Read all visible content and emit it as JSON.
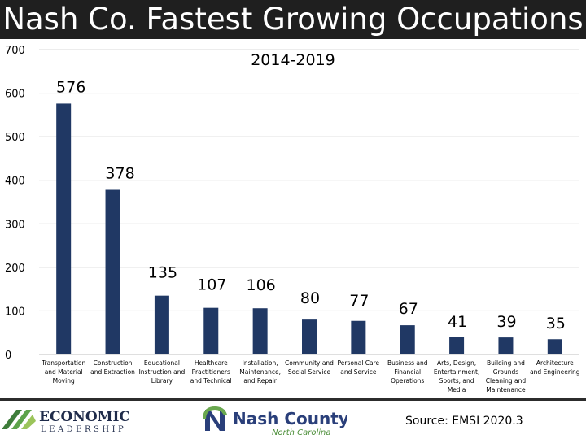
{
  "title": "Nash Co. Fastest Growing Occupations",
  "source": "Source: EMSI 2020.3",
  "logos": {
    "economic": {
      "word1": "ECONOMIC",
      "word2": "LEADERSHIP"
    },
    "nash": {
      "name": "Nash County",
      "state": "North Carolina"
    }
  },
  "colors": {
    "bar": "#203864",
    "title_bg": "#1f1f1f",
    "grid": "#d9d9d9"
  },
  "chart_data": {
    "type": "bar",
    "title": "2014-2019",
    "xlabel": "",
    "ylabel": "",
    "ylim": [
      0,
      700
    ],
    "yticks": [
      0,
      100,
      200,
      300,
      400,
      500,
      600,
      700
    ],
    "grid": true,
    "categories": [
      [
        "Transportation",
        "and Material",
        "Moving"
      ],
      [
        "Construction",
        "and Extraction"
      ],
      [
        "Educational",
        "Instruction and",
        "Library"
      ],
      [
        "Healthcare",
        "Practitioners",
        "and Technical"
      ],
      [
        "Installation,",
        "Maintenance,",
        "and Repair"
      ],
      [
        "Community and",
        "Social Service"
      ],
      [
        "Personal Care",
        "and Service"
      ],
      [
        "Business and",
        "Financial",
        "Operations"
      ],
      [
        "Arts, Design,",
        "Entertainment,",
        "Sports, and",
        "Media"
      ],
      [
        "Building and",
        "Grounds",
        "Cleaning and",
        "Maintenance"
      ],
      [
        "Architecture",
        "and Engineering"
      ]
    ],
    "values": [
      576,
      378,
      135,
      107,
      106,
      80,
      77,
      67,
      41,
      39,
      35
    ],
    "data_labels": [
      "576",
      "378",
      "135",
      "107",
      "106",
      "80",
      "77",
      "67",
      "41",
      "39",
      "35"
    ]
  }
}
